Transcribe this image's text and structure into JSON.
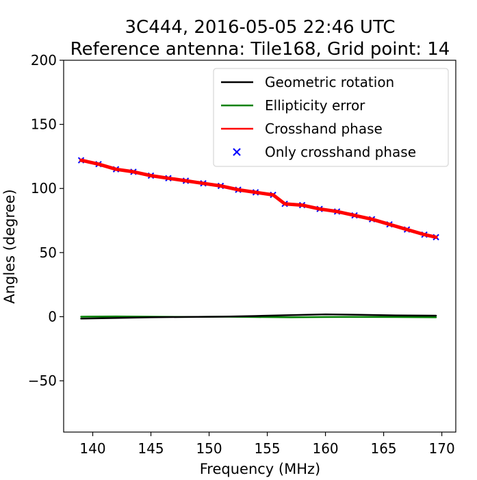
{
  "chart_data": {
    "type": "line",
    "title": "3C444, 2016-05-05 22:46 UTC",
    "subtitle": "Reference antenna: Tile168, Grid point: 14",
    "xlabel": "Frequency (MHz)",
    "ylabel": "Angles (degree)",
    "xlim": [
      137.5,
      171.2
    ],
    "ylim": [
      -90,
      200
    ],
    "xticks": [
      140,
      145,
      150,
      155,
      160,
      165,
      170
    ],
    "xtick_labels": [
      "140",
      "145",
      "150",
      "155",
      "160",
      "165",
      "170"
    ],
    "yticks": [
      -50,
      0,
      50,
      100,
      150,
      200
    ],
    "ytick_labels": [
      "−50",
      "0",
      "50",
      "100",
      "150",
      "200"
    ],
    "grid": false,
    "legend_position": "upper right",
    "series": [
      {
        "name": "Geometric rotation",
        "kind": "line",
        "color": "#000000",
        "x": [
          139.0,
          142.0,
          145.0,
          148.0,
          151.0,
          154.0,
          157.0,
          160.0,
          163.0,
          166.0,
          169.5
        ],
        "y": [
          -1.5,
          -1.0,
          -0.5,
          -0.2,
          0.0,
          0.5,
          1.2,
          1.8,
          1.5,
          1.0,
          0.8
        ]
      },
      {
        "name": "Ellipticity error",
        "kind": "line",
        "color": "#008000",
        "x": [
          139.0,
          142.0,
          145.0,
          148.0,
          151.0,
          154.0,
          157.0,
          160.0,
          163.0,
          166.0,
          169.5
        ],
        "y": [
          0.0,
          0.2,
          0.0,
          -0.2,
          0.0,
          -0.3,
          -0.5,
          -0.3,
          -0.2,
          -0.3,
          -0.5
        ]
      },
      {
        "name": "Crosshand phase",
        "kind": "line",
        "color": "#ff0000",
        "x": [
          139.0,
          140.5,
          142.0,
          143.5,
          145.0,
          146.5,
          148.0,
          149.5,
          151.0,
          152.5,
          154.0,
          155.5,
          156.5,
          158.0,
          159.5,
          161.0,
          162.5,
          164.0,
          165.5,
          167.0,
          168.5,
          169.5
        ],
        "y": [
          122,
          119,
          115,
          113,
          110,
          108,
          106,
          104,
          102,
          99,
          97,
          95,
          88,
          87,
          84,
          82,
          79,
          76,
          72,
          68,
          64,
          62
        ]
      },
      {
        "name": "Only crosshand phase",
        "kind": "scatter",
        "marker": "x",
        "color": "#0000ff",
        "x": [
          139.0,
          140.5,
          142.0,
          143.5,
          145.0,
          146.5,
          148.0,
          149.5,
          151.0,
          152.5,
          154.0,
          155.5,
          156.5,
          158.0,
          159.5,
          161.0,
          162.5,
          164.0,
          165.5,
          167.0,
          168.5,
          169.5
        ],
        "y": [
          122,
          119,
          115,
          113,
          110,
          108,
          106,
          104,
          102,
          99,
          97,
          95,
          88,
          87,
          84,
          82,
          79,
          76,
          72,
          68,
          64,
          62
        ]
      }
    ]
  }
}
